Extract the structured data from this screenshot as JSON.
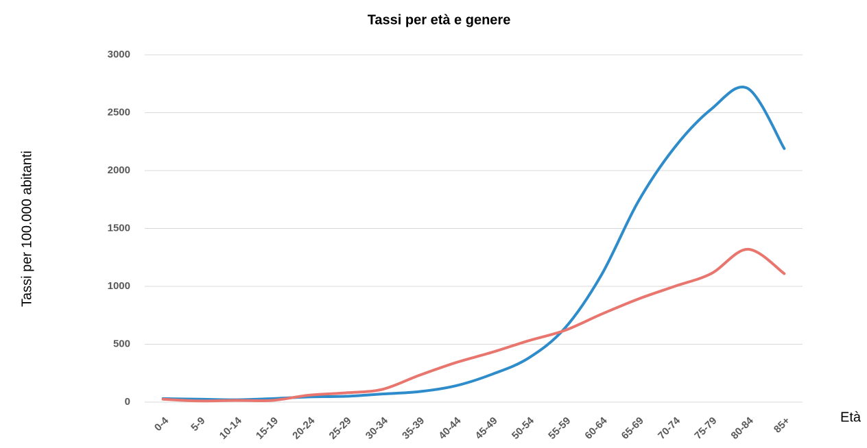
{
  "chart_data": {
    "type": "line",
    "title": "Tassi per età e genere",
    "y_label": "Tassi per 100.000 abitanti",
    "x_label": "Età",
    "categories": [
      "0-4",
      "5-9",
      "10-14",
      "15-19",
      "20-24",
      "25-29",
      "30-34",
      "35-39",
      "40-44",
      "45-49",
      "50-54",
      "55-59",
      "60-64",
      "65-69",
      "70-74",
      "75-79",
      "80-84",
      "85+"
    ],
    "series": [
      {
        "color": "#2e8ccb",
        "values": [
          30,
          25,
          20,
          30,
          45,
          50,
          70,
          90,
          140,
          240,
          380,
          640,
          1100,
          1730,
          2200,
          2530,
          2710,
          2190
        ]
      },
      {
        "color": "#e8766e",
        "values": [
          25,
          10,
          15,
          15,
          60,
          80,
          110,
          230,
          340,
          430,
          530,
          620,
          760,
          890,
          1000,
          1110,
          1320,
          1110
        ]
      }
    ],
    "ylim": [
      0,
      3000
    ],
    "yticks": [
      0,
      500,
      1000,
      1500,
      2000,
      2500,
      3000
    ],
    "grid": true,
    "smooth": true
  }
}
